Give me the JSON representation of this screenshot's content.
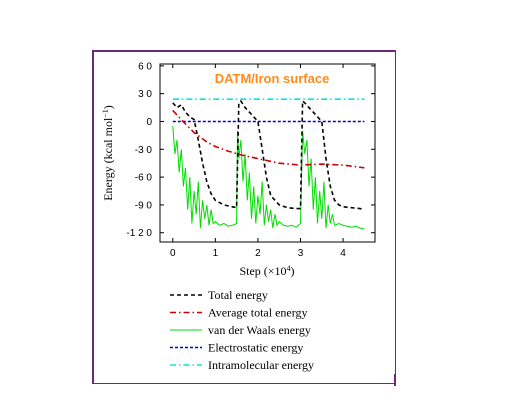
{
  "chart_data": {
    "type": "line",
    "title": "DATM/Iron surface",
    "xlabel_main": "Step (×10",
    "xlabel_sup": "4",
    "xlabel_close": ")",
    "ylabel_main": "Energy (kcal mol",
    "ylabel_sup": "−1",
    "ylabel_close": ")",
    "xlim": [
      -0.3,
      4.75
    ],
    "ylim": [
      -130,
      62
    ],
    "xticks": [
      0,
      1,
      2,
      3,
      4
    ],
    "xtick_labels": [
      "0",
      "1",
      "2",
      "3",
      "4"
    ],
    "yticks": [
      60,
      30,
      0,
      -30,
      -60,
      -90,
      -120
    ],
    "ytick_labels": [
      "6 0",
      "3 0",
      "0",
      "-3 0",
      "-6 0",
      "-9 0",
      "-1 2 0"
    ],
    "legend_position": "below",
    "series": [
      {
        "name": "Total energy",
        "style": "dash",
        "color": "#000000",
        "x": [
          0,
          0.1,
          0.2,
          0.3,
          0.4,
          0.5,
          0.6,
          0.7,
          0.8,
          0.9,
          1.0,
          1.2,
          1.4,
          1.5,
          1.55,
          1.6,
          1.7,
          1.8,
          1.9,
          2.0,
          2.1,
          2.2,
          2.3,
          2.5,
          2.7,
          2.9,
          3.0,
          3.05,
          3.1,
          3.2,
          3.3,
          3.4,
          3.5,
          3.6,
          3.7,
          3.8,
          3.9,
          4.0,
          4.2,
          4.4,
          4.5
        ],
        "y": [
          20,
          15,
          18,
          10,
          5,
          2,
          -20,
          -45,
          -65,
          -78,
          -85,
          -90,
          -92,
          -93,
          20,
          22,
          15,
          10,
          5,
          0,
          -30,
          -60,
          -80,
          -90,
          -93,
          -94,
          -94,
          22,
          20,
          15,
          10,
          5,
          0,
          -40,
          -70,
          -85,
          -90,
          -92,
          -93,
          -94,
          -95
        ]
      },
      {
        "name": "Average total energy",
        "style": "dashdot",
        "color": "#cc0000",
        "x": [
          0,
          0.2,
          0.5,
          0.8,
          1.0,
          1.3,
          1.6,
          2.0,
          2.5,
          3.0,
          3.5,
          4.0,
          4.5
        ],
        "y": [
          12,
          2,
          -12,
          -22,
          -27,
          -32,
          -36,
          -40,
          -45,
          -47,
          -46,
          -47,
          -50
        ]
      },
      {
        "name": "van der Waals energy",
        "style": "solid",
        "color": "#00dd00",
        "x": [
          0,
          0.05,
          0.1,
          0.15,
          0.2,
          0.25,
          0.3,
          0.35,
          0.4,
          0.45,
          0.5,
          0.55,
          0.6,
          0.65,
          0.7,
          0.75,
          0.8,
          0.85,
          0.9,
          0.95,
          1.0,
          1.1,
          1.2,
          1.3,
          1.4,
          1.5,
          1.52,
          1.55,
          1.6,
          1.65,
          1.7,
          1.75,
          1.8,
          1.85,
          1.9,
          1.95,
          2.0,
          2.05,
          2.1,
          2.15,
          2.2,
          2.25,
          2.3,
          2.35,
          2.4,
          2.45,
          2.5,
          2.6,
          2.7,
          2.8,
          2.9,
          3.0,
          3.05,
          3.1,
          3.15,
          3.2,
          3.25,
          3.3,
          3.35,
          3.4,
          3.45,
          3.5,
          3.55,
          3.6,
          3.65,
          3.7,
          3.75,
          3.8,
          3.9,
          4.0,
          4.1,
          4.2,
          4.3,
          4.4,
          4.5
        ],
        "y": [
          -5,
          -35,
          -20,
          -55,
          -30,
          -70,
          -50,
          -95,
          -60,
          -110,
          -75,
          -100,
          -65,
          -115,
          -85,
          -105,
          -90,
          -112,
          -95,
          -110,
          -108,
          -112,
          -110,
          -113,
          -112,
          -110,
          -10,
          -40,
          -20,
          -65,
          -35,
          -85,
          -55,
          -105,
          -70,
          -110,
          -80,
          -100,
          -65,
          -112,
          -90,
          -108,
          -95,
          -115,
          -100,
          -112,
          -108,
          -112,
          -113,
          -112,
          -114,
          -110,
          -10,
          -35,
          -20,
          -70,
          -40,
          -95,
          -60,
          -110,
          -75,
          -105,
          -65,
          -115,
          -90,
          -110,
          -100,
          -112,
          -110,
          -112,
          -113,
          -114,
          -113,
          -115,
          -116
        ]
      },
      {
        "name": "Electrostatic energy",
        "style": "dotted",
        "color": "#0000cc",
        "x": [
          0,
          4.5
        ],
        "y": [
          0,
          0
        ]
      },
      {
        "name": "Intramolecular energy",
        "style": "dashdot",
        "color": "#00e5e5",
        "x": [
          0,
          4.5
        ],
        "y": [
          24,
          24
        ]
      }
    ]
  }
}
